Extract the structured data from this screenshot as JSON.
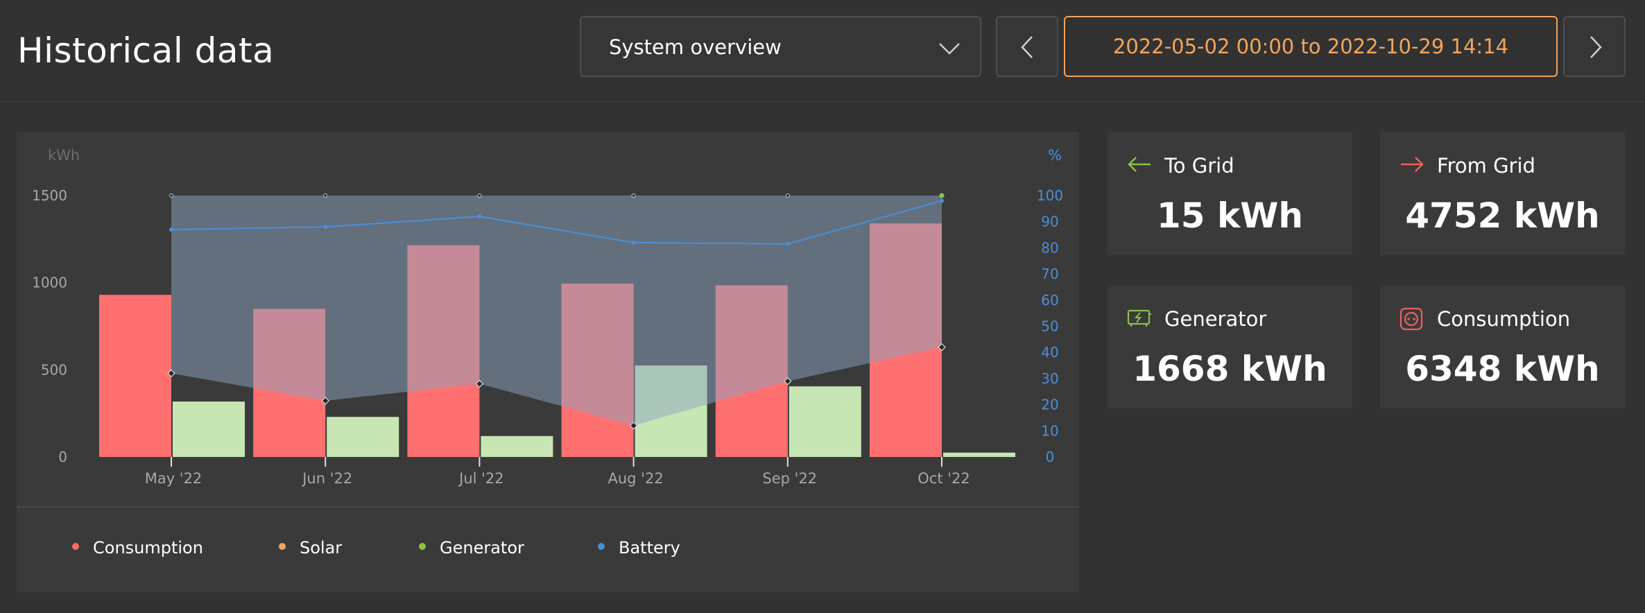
{
  "header": {
    "title": "Historical data",
    "selector": {
      "value": "System overview"
    },
    "date_range": {
      "from": "2022-05-02 00:00",
      "sep": "to",
      "to": "2022-10-29 14:14"
    }
  },
  "cards": [
    {
      "label": "To Grid",
      "value": "15 kWh",
      "icon": "arrow-left-icon",
      "color": "#8bc34a"
    },
    {
      "label": "From Grid",
      "value": "4752 kWh",
      "icon": "arrow-right-icon",
      "color": "#f06060"
    },
    {
      "label": "Generator",
      "value": "1668 kWh",
      "icon": "generator-icon",
      "color": "#8bc34a"
    },
    {
      "label": "Consumption",
      "value": "6348 kWh",
      "icon": "power-socket-icon",
      "color": "#f06060"
    }
  ],
  "legend": [
    {
      "label": "Consumption",
      "color": "#ff6b6b"
    },
    {
      "label": "Solar",
      "color": "#f5a55b"
    },
    {
      "label": "Generator",
      "color": "#8bc34a"
    },
    {
      "label": "Battery",
      "color": "#4a90d9"
    }
  ],
  "chart_data": {
    "type": "bar",
    "categories": [
      "May '22",
      "Jun '22",
      "Jul '22",
      "Aug '22",
      "Sep '22",
      "Oct '22"
    ],
    "ylabel": "kWh",
    "ylim": [
      0,
      1500
    ],
    "yticks": [
      0,
      500,
      1000,
      1500
    ],
    "y2label": "%",
    "y2lim": [
      0,
      100
    ],
    "y2ticks": [
      0,
      10,
      20,
      30,
      40,
      50,
      60,
      70,
      80,
      90,
      100
    ],
    "series": [
      {
        "name": "Consumption",
        "type": "bar",
        "color": "#ff7070",
        "values": [
          930,
          850,
          1215,
          995,
          985,
          1340
        ]
      },
      {
        "name": "Generator",
        "type": "bar",
        "color": "#c8e6b4",
        "values": [
          318,
          230,
          120,
          525,
          405,
          25
        ]
      },
      {
        "name": "Battery",
        "type": "line",
        "axis": "y2",
        "color": "#4a90d9",
        "values": [
          87,
          88,
          92,
          82,
          81.5,
          98
        ]
      },
      {
        "type": "band",
        "axis": "y2",
        "upper": [
          100,
          100,
          100,
          100,
          100,
          100
        ],
        "lower": [
          32,
          21.5,
          28,
          12,
          29,
          42
        ]
      }
    ]
  }
}
